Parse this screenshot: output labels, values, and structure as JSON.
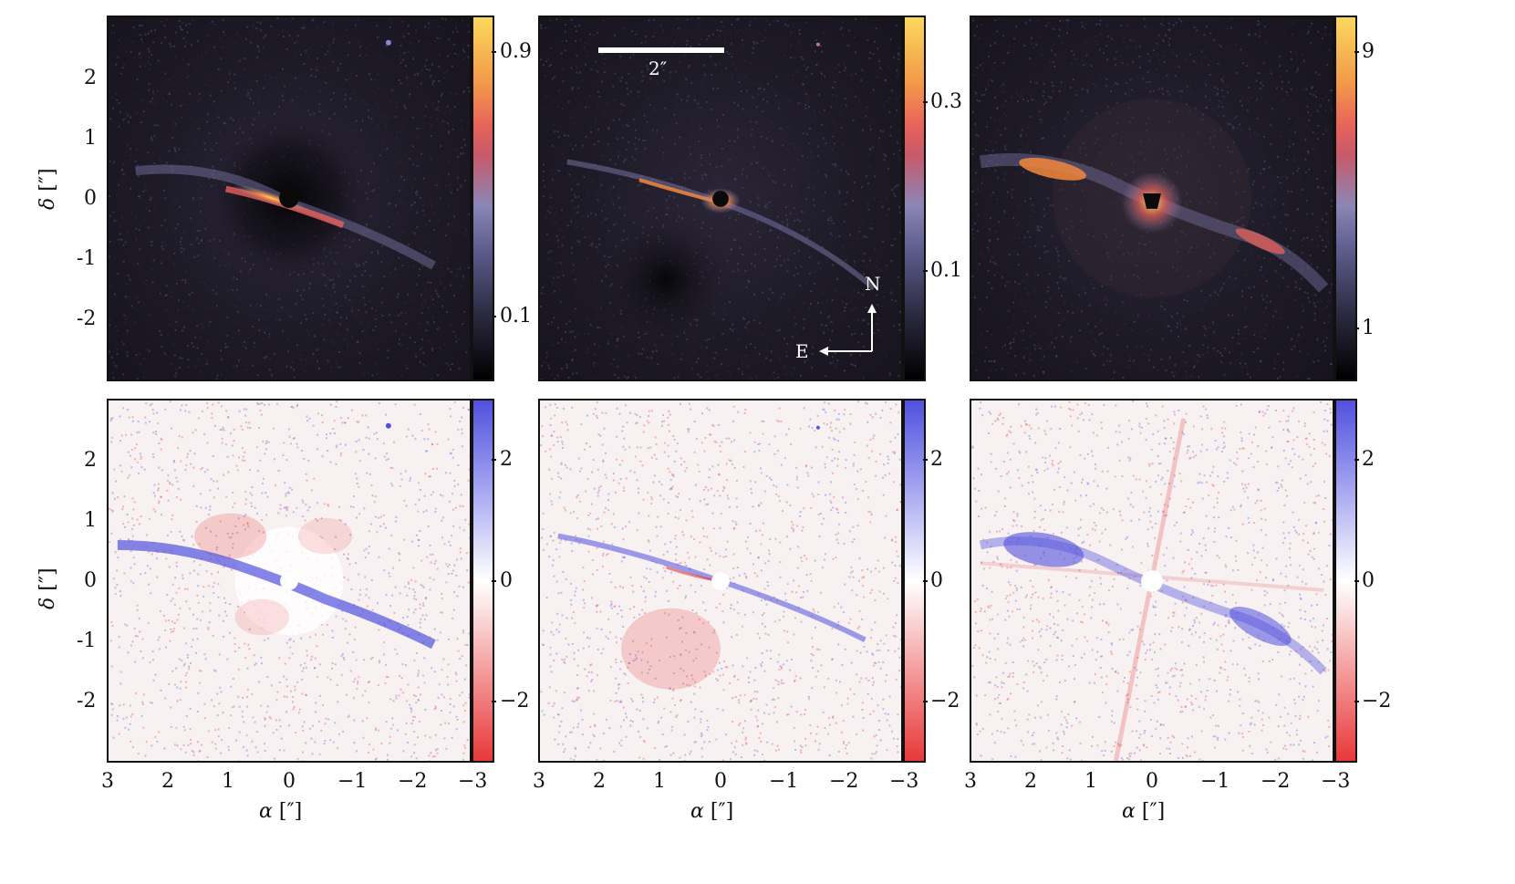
{
  "figure": {
    "panels": [
      {
        "id": "top-left",
        "type": "intensity",
        "colorbar_ticks": [
          "0.9",
          "0.1"
        ]
      },
      {
        "id": "top-middle",
        "type": "intensity",
        "colorbar_ticks": [
          "0.3",
          "0.1"
        ],
        "scale_bar_label": "2″",
        "compass": {
          "north": "N",
          "east": "E"
        }
      },
      {
        "id": "top-right",
        "type": "intensity",
        "colorbar_ticks": [
          "9",
          "1"
        ]
      },
      {
        "id": "bottom-left",
        "type": "residual",
        "colorbar_ticks": [
          "2",
          "0",
          "−2"
        ]
      },
      {
        "id": "bottom-middle",
        "type": "residual",
        "colorbar_ticks": [
          "2",
          "0",
          "−2"
        ]
      },
      {
        "id": "bottom-right",
        "type": "residual",
        "colorbar_ticks": [
          "2",
          "0",
          "−2"
        ]
      }
    ],
    "y_axis": {
      "label": "δ",
      "unit": "[″]",
      "ticks": [
        "2",
        "1",
        "0",
        "-1",
        "-2"
      ]
    },
    "x_axis": {
      "label": "α",
      "unit": "[″]",
      "ticks": [
        "3",
        "2",
        "1",
        "0",
        "−1",
        "−2",
        "−3"
      ]
    }
  },
  "colors": {
    "dark_background": "#1d1a26",
    "residual_background": "#f7f1f1",
    "positive_residual": "#5151de",
    "negative_residual": "#e8393a",
    "disk_glow": "#fbd85c"
  }
}
